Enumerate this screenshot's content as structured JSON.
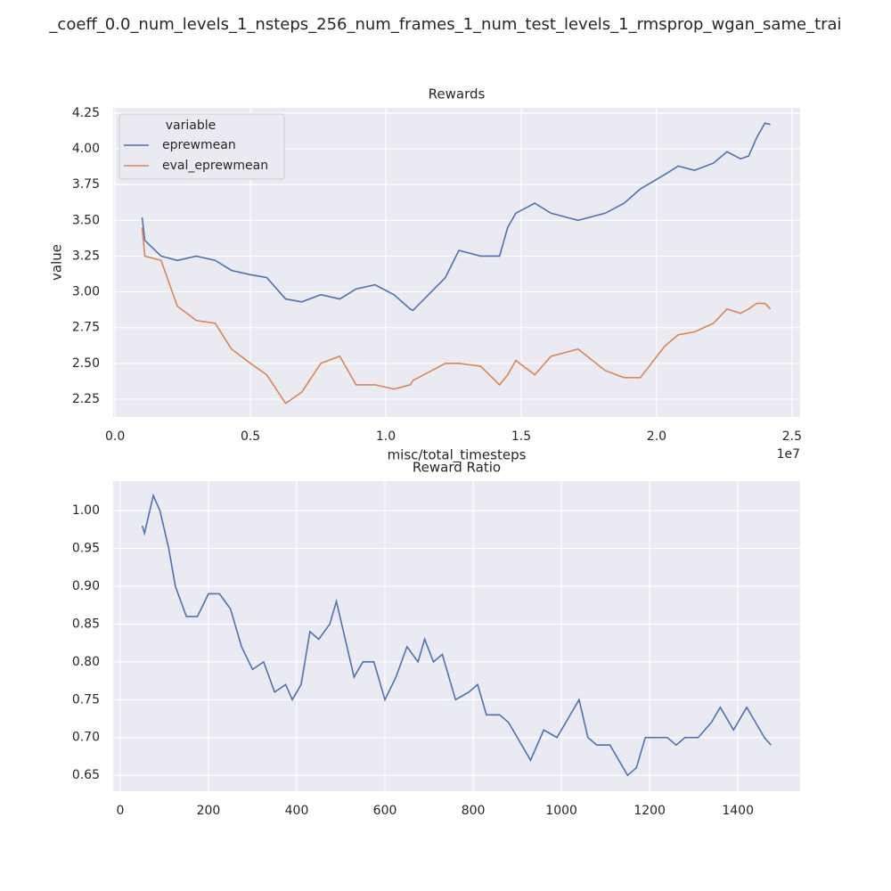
{
  "title": "_coeff_0.0_num_levels_1_nsteps_256_num_frames_1_num_test_levels_1_rmsprop_wgan_same_trai",
  "chart_data": [
    {
      "type": "line",
      "title": "Rewards",
      "x_label": "misc/total_timesteps",
      "y_label": "value",
      "x_offset_label": "1e7",
      "legend_title": "variable",
      "legend": "upper left",
      "grid": true,
      "xlim": [
        -0.007,
        2.53
      ],
      "ylim": [
        2.125,
        4.287
      ],
      "xticks": [
        {
          "value": 0,
          "label": "0.0"
        },
        0.5,
        {
          "value": 1,
          "label": "1.0"
        },
        1.5,
        {
          "value": 2,
          "label": "2.0"
        },
        2.5
      ],
      "yticks": [
        2.25,
        {
          "value": 2.5,
          "label": "2.50"
        },
        2.75,
        {
          "value": 3,
          "label": "3.00"
        },
        3.25,
        {
          "value": 3.5,
          "label": "3.50"
        },
        3.75,
        {
          "value": 4,
          "label": "4.00"
        },
        4.25
      ],
      "x": [
        0.1,
        0.11,
        0.17,
        0.23,
        0.3,
        0.37,
        0.43,
        0.5,
        0.56,
        0.63,
        0.69,
        0.76,
        0.83,
        0.89,
        0.96,
        1.03,
        1.09,
        1.1,
        1.22,
        1.27,
        1.35,
        1.42,
        1.45,
        1.48,
        1.55,
        1.61,
        1.71,
        1.81,
        1.88,
        1.94,
        2.03,
        2.08,
        2.14,
        2.21,
        2.26,
        2.31,
        2.34,
        2.37,
        2.4,
        2.42
      ],
      "series": [
        {
          "name": "eprewmean",
          "color": "#4c72b0",
          "values": [
            3.52,
            3.36,
            3.25,
            3.22,
            3.25,
            3.22,
            3.15,
            3.12,
            3.1,
            2.95,
            2.93,
            2.98,
            2.95,
            3.02,
            3.05,
            2.98,
            2.88,
            2.87,
            3.1,
            3.29,
            3.25,
            3.25,
            3.45,
            3.55,
            3.62,
            3.55,
            3.5,
            3.55,
            3.62,
            3.72,
            3.82,
            3.88,
            3.85,
            3.9,
            3.98,
            3.93,
            3.95,
            4.08,
            4.18,
            4.17
          ]
        },
        {
          "name": "eval_eprewmean",
          "color": "#dd8452",
          "values": [
            3.45,
            3.25,
            3.22,
            2.9,
            2.8,
            2.78,
            2.6,
            2.5,
            2.42,
            2.22,
            2.3,
            2.5,
            2.55,
            2.35,
            2.35,
            2.32,
            2.35,
            2.38,
            2.5,
            2.5,
            2.48,
            2.35,
            2.42,
            2.52,
            2.42,
            2.55,
            2.6,
            2.45,
            2.4,
            2.4,
            2.62,
            2.7,
            2.72,
            2.78,
            2.88,
            2.85,
            2.88,
            2.92,
            2.92,
            2.88
          ]
        }
      ]
    },
    {
      "type": "line",
      "title": "Reward Ratio",
      "grid": true,
      "xlim": [
        -16,
        1541
      ],
      "ylim": [
        0.629,
        1.039
      ],
      "xticks": [
        0,
        200,
        400,
        600,
        800,
        1000,
        1200,
        1400
      ],
      "yticks": [
        0.65,
        {
          "value": 0.7,
          "label": "0.70"
        },
        0.75,
        {
          "value": 0.8,
          "label": "0.80"
        },
        0.85,
        {
          "value": 0.9,
          "label": "0.90"
        },
        0.95,
        {
          "value": 1,
          "label": "1.00"
        }
      ],
      "x": [
        50,
        55,
        75,
        90,
        110,
        125,
        150,
        175,
        200,
        225,
        250,
        275,
        300,
        325,
        350,
        375,
        390,
        410,
        430,
        450,
        475,
        490,
        510,
        530,
        550,
        575,
        600,
        625,
        650,
        675,
        690,
        710,
        730,
        760,
        790,
        810,
        830,
        860,
        880,
        900,
        930,
        960,
        990,
        1020,
        1040,
        1060,
        1080,
        1110,
        1130,
        1150,
        1170,
        1190,
        1210,
        1240,
        1260,
        1280,
        1310,
        1340,
        1360,
        1390,
        1420,
        1440,
        1460,
        1475
      ],
      "series": [
        {
          "color": "#4c72b0",
          "values": [
            0.98,
            0.97,
            1.02,
            1.0,
            0.95,
            0.9,
            0.86,
            0.86,
            0.89,
            0.89,
            0.87,
            0.82,
            0.79,
            0.8,
            0.76,
            0.77,
            0.75,
            0.77,
            0.84,
            0.83,
            0.85,
            0.88,
            0.83,
            0.78,
            0.8,
            0.8,
            0.75,
            0.78,
            0.82,
            0.8,
            0.83,
            0.8,
            0.81,
            0.75,
            0.76,
            0.77,
            0.73,
            0.73,
            0.72,
            0.7,
            0.67,
            0.71,
            0.7,
            0.73,
            0.75,
            0.7,
            0.69,
            0.69,
            0.67,
            0.65,
            0.66,
            0.7,
            0.7,
            0.7,
            0.69,
            0.7,
            0.7,
            0.72,
            0.74,
            0.71,
            0.74,
            0.72,
            0.7,
            0.69
          ]
        }
      ]
    }
  ]
}
